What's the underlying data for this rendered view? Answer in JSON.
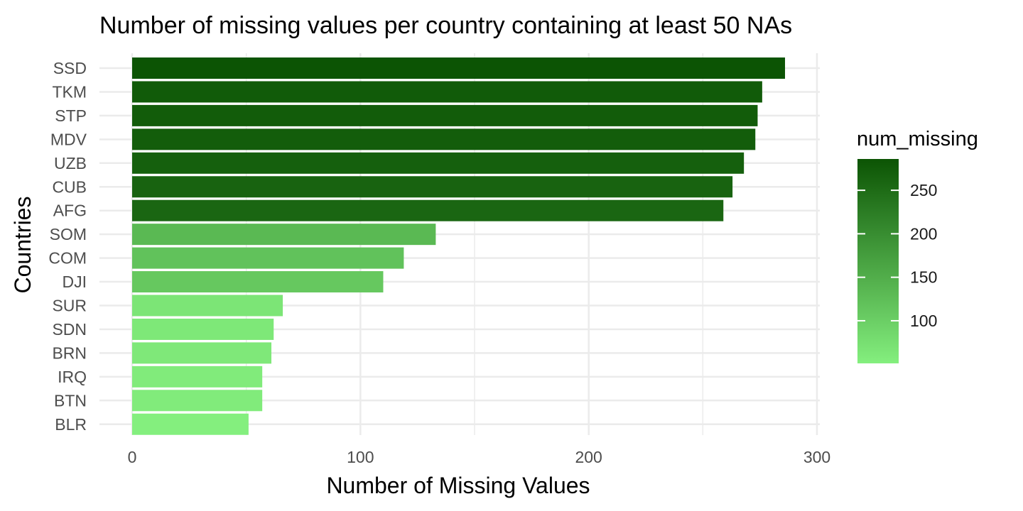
{
  "chart_data": {
    "type": "bar",
    "orientation": "horizontal",
    "title": "Number of missing values per country containing at least 50 NAs",
    "xlabel": "Number of Missing Values",
    "ylabel": "Countries",
    "xlim": [
      0,
      300
    ],
    "x_ticks": [
      0,
      100,
      200,
      300
    ],
    "x_tick_labels": [
      "0",
      "100",
      "200",
      "300"
    ],
    "grid": true,
    "categories": [
      "SSD",
      "TKM",
      "STP",
      "MDV",
      "UZB",
      "CUB",
      "AFG",
      "SOM",
      "COM",
      "DJI",
      "SUR",
      "SDN",
      "BRN",
      "IRQ",
      "BTN",
      "BLR"
    ],
    "values": [
      286,
      276,
      274,
      273,
      268,
      263,
      259,
      133,
      119,
      110,
      66,
      62,
      61,
      57,
      57,
      51
    ],
    "colors": {
      "low": "#84ef7e",
      "high": "#0c5404"
    },
    "legend": {
      "title": "num_missing",
      "placement": "right",
      "range": [
        51,
        286
      ],
      "ticks": [
        100,
        150,
        200,
        250
      ],
      "tick_labels": [
        "100",
        "150",
        "200",
        "250"
      ]
    }
  }
}
